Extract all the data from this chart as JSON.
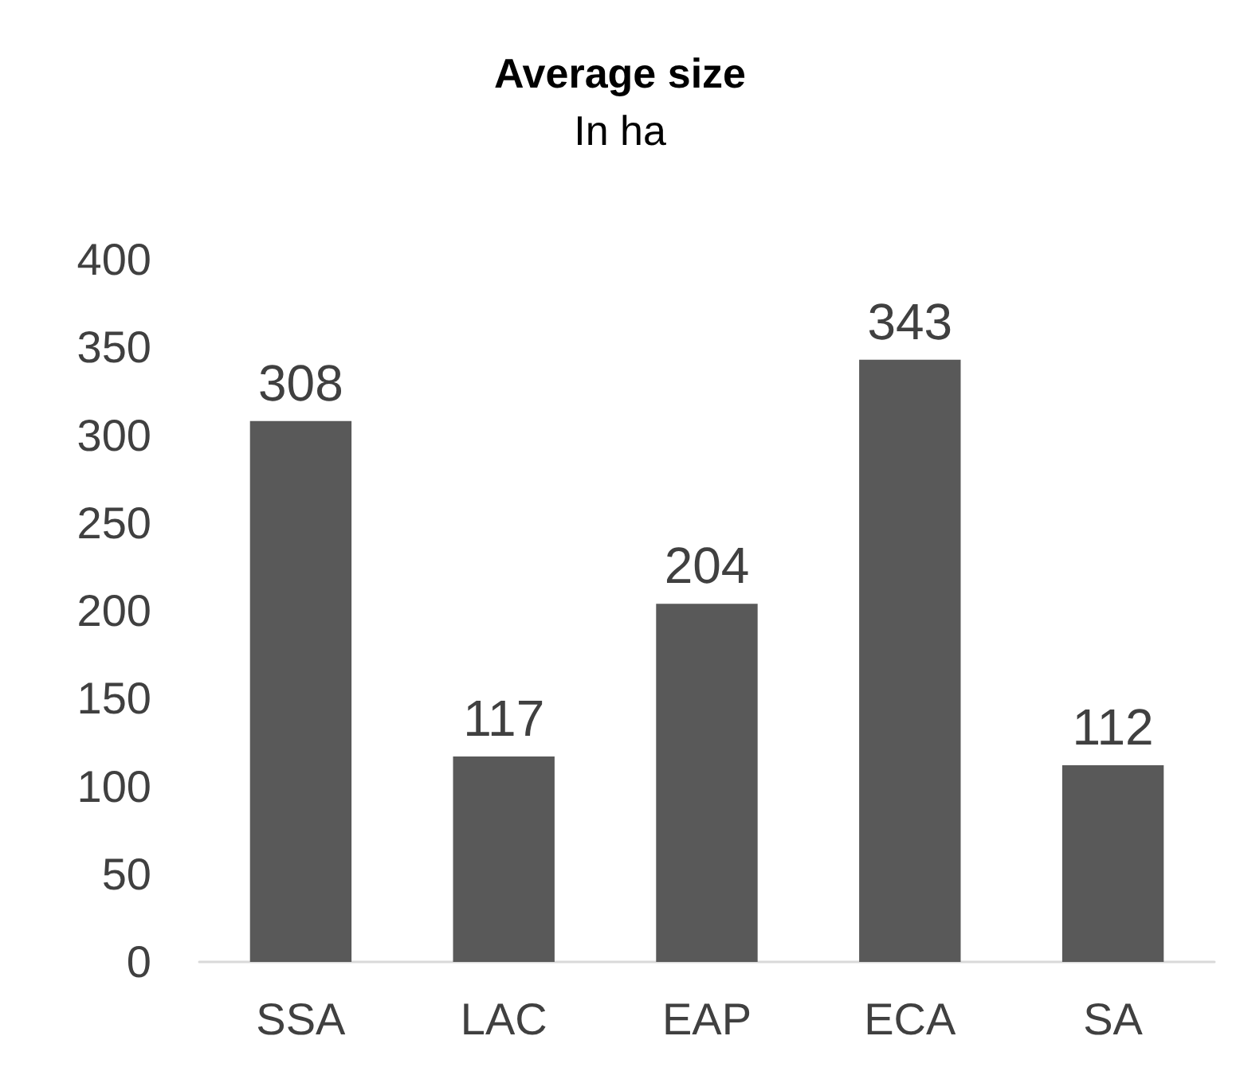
{
  "chart_data": {
    "type": "bar",
    "title": "Average size",
    "subtitle": "In ha",
    "categories": [
      "SSA",
      "LAC",
      "EAP",
      "ECA",
      "SA"
    ],
    "values": [
      308,
      117,
      204,
      343,
      112
    ],
    "color": "#595959",
    "ylim": [
      0,
      400
    ],
    "yticks": [
      0,
      50,
      100,
      150,
      200,
      250,
      300,
      350,
      400
    ],
    "grid": false,
    "data_labels": true
  }
}
